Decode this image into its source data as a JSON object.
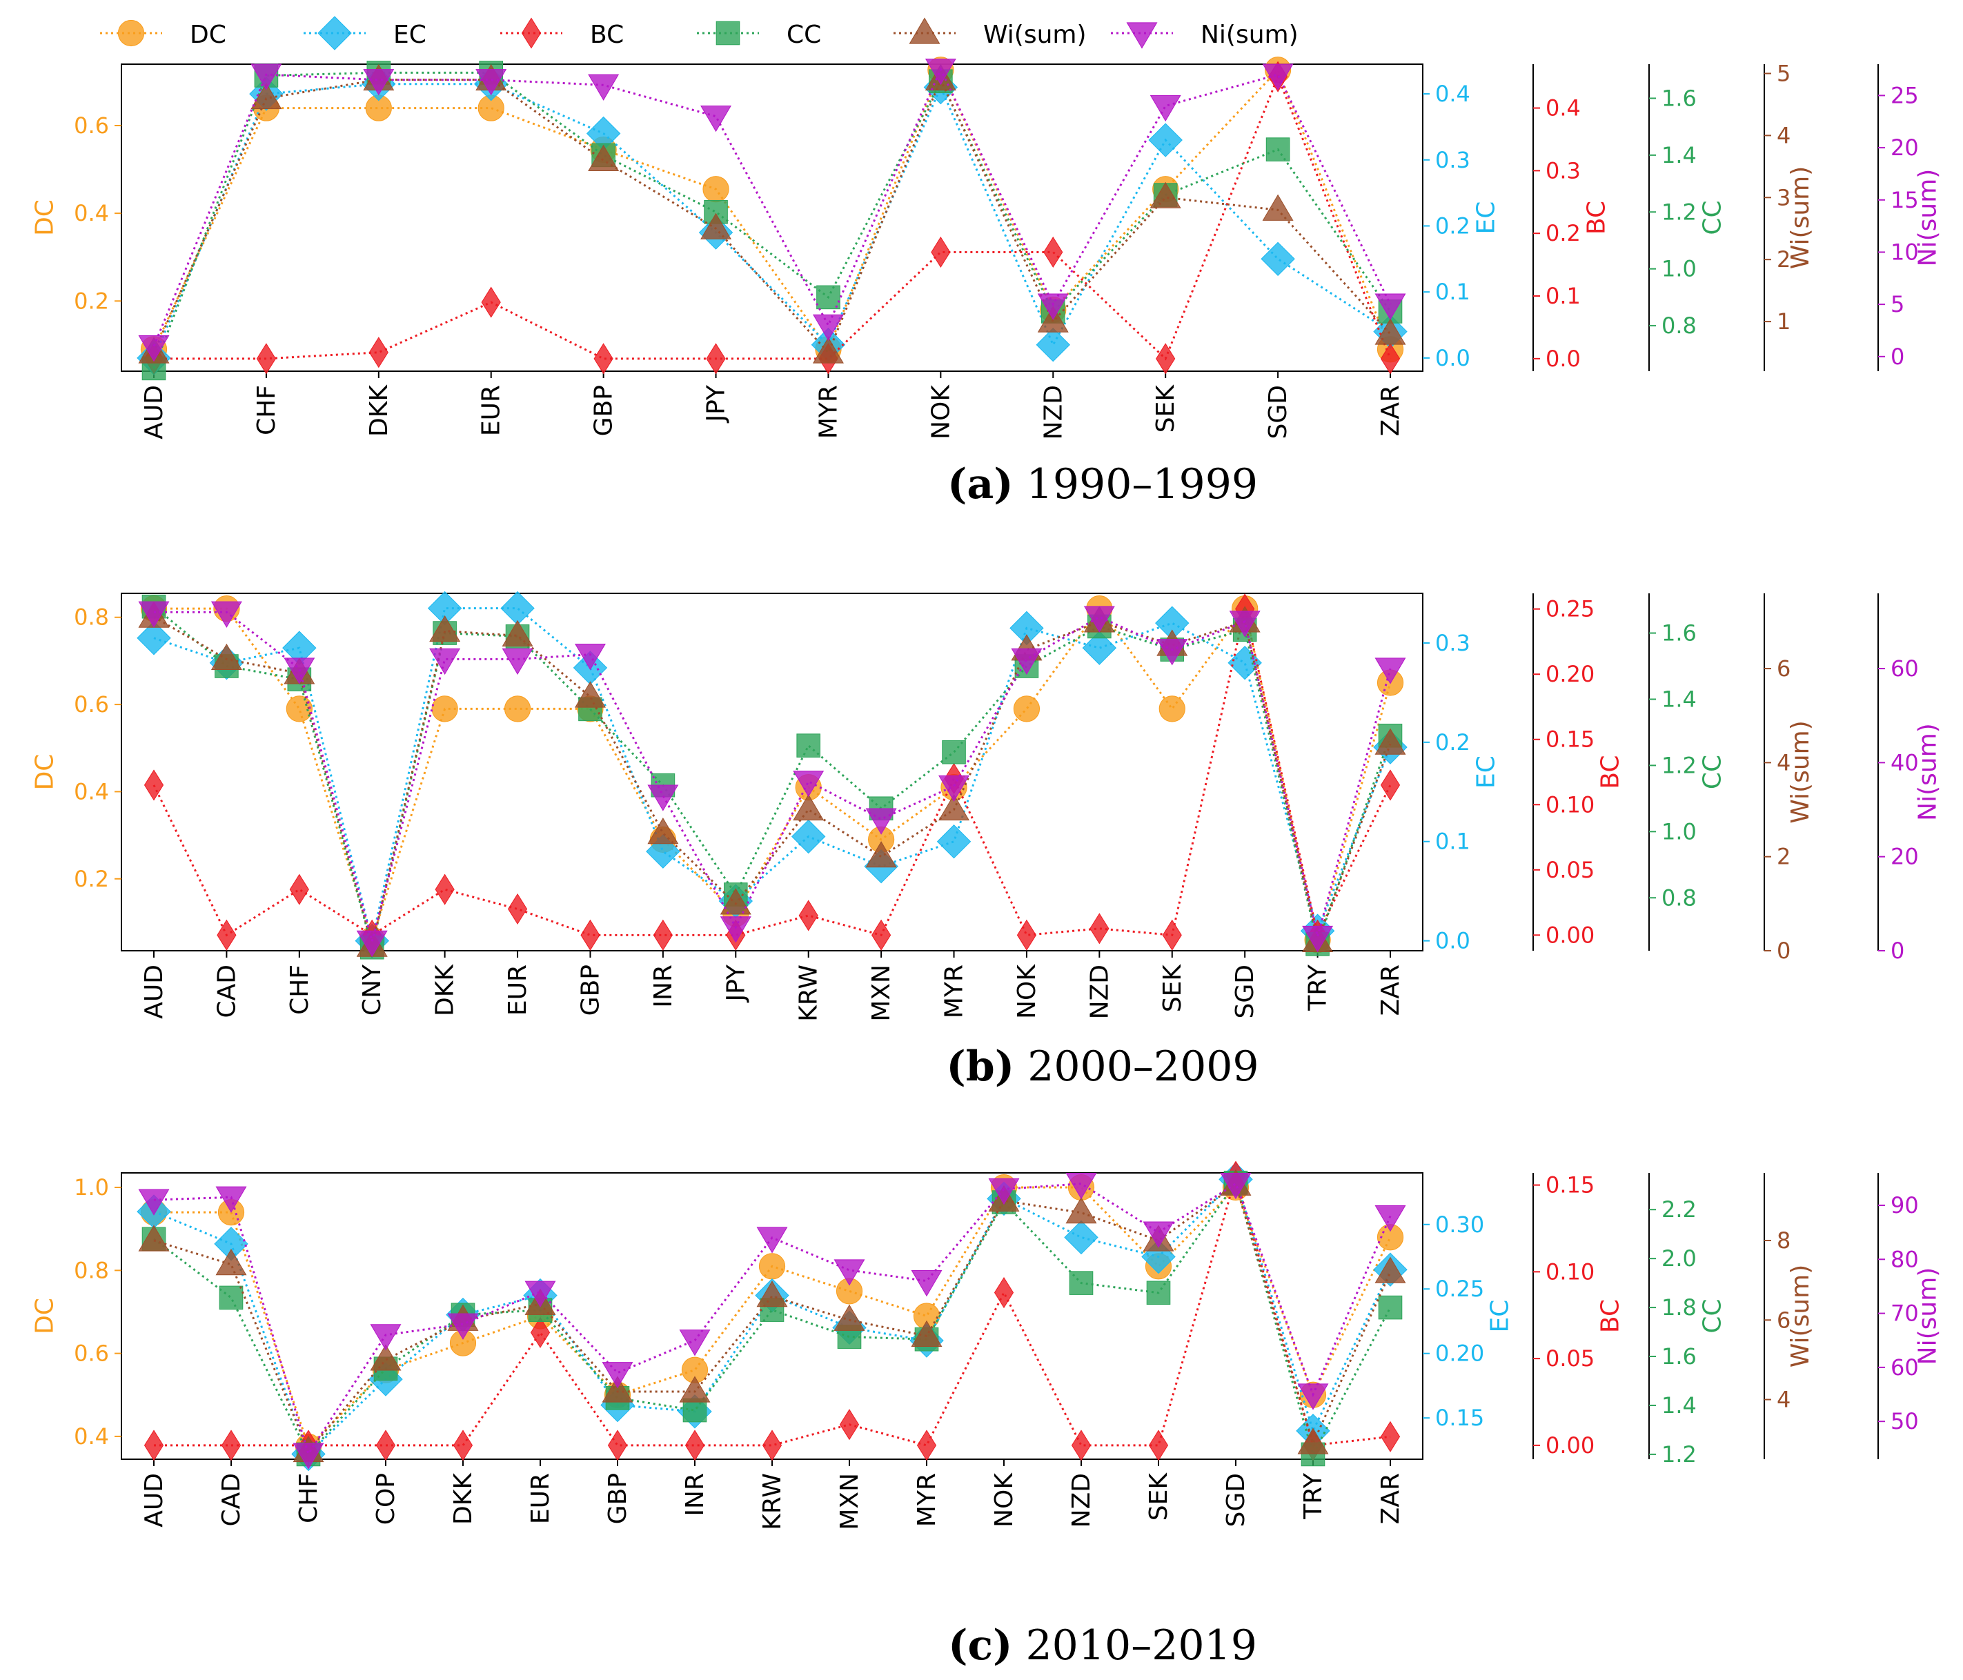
{
  "legend": {
    "items": [
      {
        "name": "DC",
        "color": "#f99d1c",
        "marker": "circle"
      },
      {
        "name": "EC",
        "color": "#1ab8f0",
        "marker": "diamond"
      },
      {
        "name": "BC",
        "color": "#ee1b22",
        "marker": "thin-diamond"
      },
      {
        "name": "CC",
        "color": "#2ea55a",
        "marker": "square"
      },
      {
        "name": "Wi(sum)",
        "color": "#9b4f2a",
        "marker": "triangle-up"
      },
      {
        "name": "Ni(sum)",
        "color": "#b516c8",
        "marker": "triangle-down"
      }
    ]
  },
  "chart_data": [
    {
      "type": "line",
      "caption_letter": "(a)",
      "caption_text": " 1990–1999",
      "categories": [
        "AUD",
        "CHF",
        "DKK",
        "EUR",
        "GBP",
        "JPY",
        "MYR",
        "NOK",
        "NZD",
        "SEK",
        "SGD",
        "ZAR"
      ],
      "axes": [
        {
          "name": "DC",
          "label": "DC",
          "color": "#f99d1c",
          "range": [
            0.04,
            0.74
          ],
          "ticks": [
            0.2,
            0.4,
            0.6
          ],
          "tick_labels": [
            "0.2",
            "0.4",
            "0.6"
          ]
        },
        {
          "name": "EC",
          "label": "EC",
          "color": "#1ab8f0",
          "range": [
            -0.02,
            0.445
          ],
          "ticks": [
            0.0,
            0.1,
            0.2,
            0.3,
            0.4
          ],
          "tick_labels": [
            "0.0",
            "0.1",
            "0.2",
            "0.3",
            "0.4"
          ]
        },
        {
          "name": "BC",
          "label": "BC",
          "color": "#ee1b22",
          "range": [
            -0.02,
            0.47
          ],
          "ticks": [
            0.0,
            0.1,
            0.2,
            0.3,
            0.4
          ],
          "tick_labels": [
            "0.0",
            "0.1",
            "0.2",
            "0.3",
            "0.4"
          ]
        },
        {
          "name": "CC",
          "label": "CC",
          "color": "#2ea55a",
          "range": [
            0.64,
            1.72
          ],
          "ticks": [
            0.8,
            1.0,
            1.2,
            1.4,
            1.6
          ],
          "tick_labels": [
            "0.8",
            "1.0",
            "1.2",
            "1.4",
            "1.6"
          ]
        },
        {
          "name": "Wi(sum)",
          "label": "Wi(sum)",
          "color": "#9b4f2a",
          "range": [
            0.2,
            5.15
          ],
          "ticks": [
            1,
            2,
            3,
            4,
            5
          ],
          "tick_labels": [
            "1",
            "2",
            "3",
            "4",
            "5"
          ]
        },
        {
          "name": "Ni(sum)",
          "label": "Ni(sum)",
          "color": "#b516c8",
          "range": [
            -1.4,
            28.0
          ],
          "ticks": [
            0,
            5,
            10,
            15,
            20,
            25
          ],
          "tick_labels": [
            "0",
            "5",
            "10",
            "15",
            "20",
            "25"
          ]
        }
      ],
      "series": [
        {
          "name": "DC",
          "values": [
            0.09,
            0.64,
            0.64,
            0.64,
            0.545,
            0.455,
            0.09,
            0.727,
            0.18,
            0.455,
            0.727,
            0.09
          ]
        },
        {
          "name": "EC",
          "values": [
            0.0,
            0.4,
            0.415,
            0.415,
            0.34,
            0.19,
            0.02,
            0.41,
            0.02,
            0.33,
            0.15,
            0.04
          ]
        },
        {
          "name": "BC",
          "values": [
            0.0,
            0.0,
            0.01,
            0.09,
            0.0,
            0.0,
            0.0,
            0.17,
            0.17,
            0.0,
            0.45,
            0.0
          ]
        },
        {
          "name": "CC",
          "values": [
            0.65,
            1.68,
            1.69,
            1.69,
            1.4,
            1.2,
            0.9,
            1.66,
            0.85,
            1.26,
            1.42,
            0.85
          ]
        },
        {
          "name": "Wi(sum)",
          "values": [
            0.5,
            4.6,
            4.9,
            4.9,
            3.6,
            2.5,
            0.5,
            4.9,
            1.0,
            3.0,
            2.8,
            0.8
          ]
        },
        {
          "name": "Ni(sum)",
          "values": [
            1,
            27,
            26.5,
            26.5,
            26,
            23,
            3,
            27.5,
            5,
            24,
            27,
            5
          ]
        }
      ]
    },
    {
      "type": "line",
      "caption_letter": "(b)",
      "caption_text": " 2000–2009",
      "categories": [
        "AUD",
        "CAD",
        "CHF",
        "CNY",
        "DKK",
        "EUR",
        "GBP",
        "INR",
        "JPY",
        "KRW",
        "MXN",
        "MYR",
        "NOK",
        "NZD",
        "SEK",
        "SGD",
        "TRY",
        "ZAR"
      ],
      "axes": [
        {
          "name": "DC",
          "label": "DC",
          "color": "#f99d1c",
          "range": [
            0.035,
            0.855
          ],
          "ticks": [
            0.2,
            0.4,
            0.6,
            0.8
          ],
          "tick_labels": [
            "0.2",
            "0.4",
            "0.6",
            "0.8"
          ]
        },
        {
          "name": "EC",
          "label": "EC",
          "color": "#1ab8f0",
          "range": [
            -0.01,
            0.35
          ],
          "ticks": [
            0.0,
            0.1,
            0.2,
            0.3
          ],
          "tick_labels": [
            "0.0",
            "0.1",
            "0.2",
            "0.3"
          ]
        },
        {
          "name": "BC",
          "label": "BC",
          "color": "#ee1b22",
          "range": [
            -0.012,
            0.262
          ],
          "ticks": [
            0.0,
            0.05,
            0.1,
            0.15,
            0.2,
            0.25
          ],
          "tick_labels": [
            "0.00",
            "0.05",
            "0.10",
            "0.15",
            "0.20",
            "0.25"
          ]
        },
        {
          "name": "CC",
          "label": "CC",
          "color": "#2ea55a",
          "range": [
            0.64,
            1.72
          ],
          "ticks": [
            0.8,
            1.0,
            1.2,
            1.4,
            1.6
          ],
          "tick_labels": [
            "0.8",
            "1.0",
            "1.2",
            "1.4",
            "1.6"
          ]
        },
        {
          "name": "Wi(sum)",
          "label": "Wi(sum)",
          "color": "#9b4f2a",
          "range": [
            0.0,
            7.6
          ],
          "ticks": [
            0,
            2,
            4,
            6
          ],
          "tick_labels": [
            "0",
            "2",
            "4",
            "6"
          ]
        },
        {
          "name": "Ni(sum)",
          "label": "Ni(sum)",
          "color": "#b516c8",
          "range": [
            0.0,
            76.0
          ],
          "ticks": [
            0,
            20,
            40,
            60
          ],
          "tick_labels": [
            "0",
            "20",
            "40",
            "60"
          ]
        }
      ],
      "series": [
        {
          "name": "DC",
          "values": [
            0.82,
            0.82,
            0.59,
            0.06,
            0.59,
            0.59,
            0.59,
            0.29,
            0.12,
            0.41,
            0.29,
            0.41,
            0.59,
            0.82,
            0.59,
            0.82,
            0.06,
            0.65
          ]
        },
        {
          "name": "EC",
          "values": [
            0.305,
            0.28,
            0.295,
            0.0,
            0.335,
            0.335,
            0.275,
            0.09,
            0.04,
            0.105,
            0.075,
            0.1,
            0.315,
            0.295,
            0.32,
            0.28,
            0.01,
            0.195
          ]
        },
        {
          "name": "BC",
          "values": [
            0.115,
            0.0,
            0.035,
            0.0,
            0.035,
            0.02,
            0.0,
            0.0,
            0.0,
            0.015,
            0.0,
            0.12,
            0.0,
            0.005,
            0.0,
            0.25,
            0.0,
            0.115
          ]
        },
        {
          "name": "CC",
          "values": [
            1.68,
            1.5,
            1.46,
            0.65,
            1.6,
            1.59,
            1.37,
            1.14,
            0.81,
            1.26,
            1.07,
            1.24,
            1.5,
            1.62,
            1.55,
            1.61,
            0.66,
            1.29
          ]
        },
        {
          "name": "Wi(sum)",
          "values": [
            7.1,
            6.2,
            5.9,
            0.1,
            6.8,
            6.7,
            5.4,
            2.5,
            1.0,
            3.0,
            2.0,
            3.0,
            6.4,
            7.0,
            6.5,
            7.0,
            0.2,
            4.4
          ]
        },
        {
          "name": "Ni(sum)",
          "values": [
            72,
            72,
            60,
            2,
            62,
            62,
            63,
            33,
            5,
            36,
            28,
            35,
            62,
            71,
            64,
            70,
            3,
            60
          ]
        }
      ]
    },
    {
      "type": "line",
      "caption_letter": "(c)",
      "caption_text": " 2010–2019",
      "categories": [
        "AUD",
        "CAD",
        "CHF",
        "COP",
        "DKK",
        "EUR",
        "GBP",
        "INR",
        "KRW",
        "MXN",
        "MYR",
        "NOK",
        "NZD",
        "SEK",
        "SGD",
        "TRY",
        "ZAR"
      ],
      "axes": [
        {
          "name": "DC",
          "label": "DC",
          "color": "#f99d1c",
          "range": [
            0.345,
            1.035
          ],
          "ticks": [
            0.4,
            0.6,
            0.8,
            1.0
          ],
          "tick_labels": [
            "0.4",
            "0.6",
            "0.8",
            "1.0"
          ]
        },
        {
          "name": "EC",
          "label": "EC",
          "color": "#1ab8f0",
          "range": [
            0.118,
            0.34
          ],
          "ticks": [
            0.15,
            0.2,
            0.25,
            0.3
          ],
          "tick_labels": [
            "0.15",
            "0.20",
            "0.25",
            "0.30"
          ]
        },
        {
          "name": "BC",
          "label": "BC",
          "color": "#ee1b22",
          "range": [
            -0.008,
            0.157
          ],
          "ticks": [
            0.0,
            0.05,
            0.1,
            0.15
          ],
          "tick_labels": [
            "0.00",
            "0.05",
            "0.10",
            "0.15"
          ]
        },
        {
          "name": "CC",
          "label": "CC",
          "color": "#2ea55a",
          "range": [
            1.18,
            2.35
          ],
          "ticks": [
            1.2,
            1.4,
            1.6,
            1.8,
            2.0,
            2.2
          ],
          "tick_labels": [
            "1.2",
            "1.4",
            "1.6",
            "1.8",
            "2.0",
            "2.2"
          ]
        },
        {
          "name": "Wi(sum)",
          "label": "Wi(sum)",
          "color": "#9b4f2a",
          "range": [
            2.5,
            9.7
          ],
          "ticks": [
            4,
            6,
            8
          ],
          "tick_labels": [
            "4",
            "6",
            "8"
          ]
        },
        {
          "name": "Ni(sum)",
          "label": "Ni(sum)",
          "color": "#b516c8",
          "range": [
            43.0,
            96.0
          ],
          "ticks": [
            50,
            60,
            70,
            80,
            90
          ],
          "tick_labels": [
            "50",
            "60",
            "70",
            "80",
            "90"
          ]
        }
      ],
      "series": [
        {
          "name": "DC",
          "values": [
            0.94,
            0.94,
            0.375,
            0.56,
            0.625,
            0.69,
            0.5,
            0.56,
            0.81,
            0.75,
            0.69,
            1.0,
            1.0,
            0.81,
            1.0,
            0.5,
            0.88
          ]
        },
        {
          "name": "EC",
          "values": [
            0.31,
            0.285,
            0.122,
            0.18,
            0.23,
            0.245,
            0.16,
            0.155,
            0.245,
            0.22,
            0.21,
            0.32,
            0.29,
            0.275,
            0.335,
            0.14,
            0.265
          ]
        },
        {
          "name": "BC",
          "values": [
            0.0,
            0.0,
            0.0,
            0.0,
            0.0,
            0.065,
            0.0,
            0.0,
            0.0,
            0.012,
            0.0,
            0.088,
            0.0,
            0.0,
            0.155,
            0.0,
            0.005
          ]
        },
        {
          "name": "CC",
          "values": [
            2.08,
            1.84,
            1.2,
            1.55,
            1.77,
            1.79,
            1.43,
            1.38,
            1.79,
            1.68,
            1.67,
            2.23,
            1.9,
            1.86,
            2.31,
            1.2,
            1.8
          ]
        },
        {
          "name": "Wi(sum)",
          "values": [
            8.0,
            7.4,
            2.7,
            5.0,
            6.0,
            6.4,
            4.2,
            4.2,
            6.6,
            6.0,
            5.6,
            9.0,
            8.7,
            8.0,
            9.4,
            2.9,
            7.2
          ]
        },
        {
          "name": "Ni(sum)",
          "values": [
            91,
            91.5,
            44,
            66,
            68,
            74,
            59,
            65,
            84,
            78,
            76,
            93,
            94,
            85,
            94,
            55,
            88
          ]
        }
      ]
    }
  ]
}
